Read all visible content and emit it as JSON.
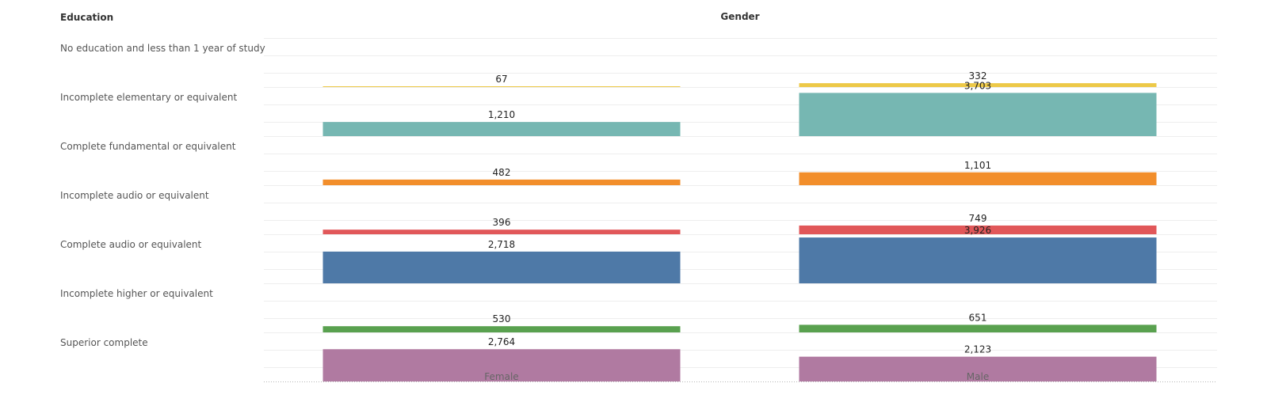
{
  "headers": {
    "rows": "Education",
    "columns": "Gender"
  },
  "chart_data": {
    "type": "bar",
    "title": "",
    "row_dimension": "Education",
    "column_dimension": "Gender",
    "categories": [
      "No education and less than 1 year of study",
      "Incomplete elementary or equivalent",
      "Complete fundamental or equivalent",
      "Incomplete audio or equivalent",
      "Complete audio or equivalent",
      "Incomplete higher or equivalent",
      "Superior complete"
    ],
    "columns": [
      "Female",
      "Male"
    ],
    "colors": [
      "#EDC948",
      "#76B7B2",
      "#F28E2B",
      "#E15759",
      "#4E79A7",
      "#59A14F",
      "#B07AA1"
    ],
    "series": [
      {
        "name": "Female",
        "values": [
          67,
          1210,
          482,
          396,
          2718,
          530,
          2764
        ]
      },
      {
        "name": "Male",
        "values": [
          332,
          3703,
          1101,
          749,
          3926,
          651,
          2123
        ]
      }
    ],
    "value_labels": [
      [
        "67",
        "332"
      ],
      [
        "1,210",
        "3,703"
      ],
      [
        "482",
        "1,101"
      ],
      [
        "396",
        "749"
      ],
      [
        "2,718",
        "3,926"
      ],
      [
        "530",
        "651"
      ],
      [
        "2,764",
        "2,123"
      ]
    ],
    "ylim": [
      0,
      4000
    ],
    "grid": true,
    "legend": "none"
  }
}
